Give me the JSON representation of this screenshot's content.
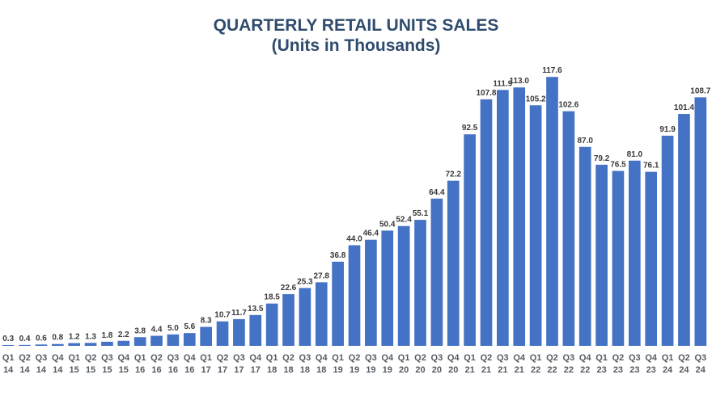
{
  "chart_data": {
    "type": "bar",
    "title": "QUARTERLY RETAIL UNITS SALES",
    "subtitle": "(Units in Thousands)",
    "xlabel": "",
    "ylabel": "",
    "ylim": [
      0,
      125
    ],
    "grid": false,
    "bar_color": "#4472c4",
    "categories": [
      [
        "Q1",
        "14"
      ],
      [
        "Q2",
        "14"
      ],
      [
        "Q3",
        "14"
      ],
      [
        "Q4",
        "14"
      ],
      [
        "Q1",
        "15"
      ],
      [
        "Q2",
        "15"
      ],
      [
        "Q3",
        "15"
      ],
      [
        "Q4",
        "15"
      ],
      [
        "Q1",
        "16"
      ],
      [
        "Q2",
        "16"
      ],
      [
        "Q3",
        "16"
      ],
      [
        "Q4",
        "16"
      ],
      [
        "Q1",
        "17"
      ],
      [
        "Q2",
        "17"
      ],
      [
        "Q3",
        "17"
      ],
      [
        "Q4",
        "17"
      ],
      [
        "Q1",
        "18"
      ],
      [
        "Q2",
        "18"
      ],
      [
        "Q3",
        "18"
      ],
      [
        "Q4",
        "18"
      ],
      [
        "Q1",
        "19"
      ],
      [
        "Q2",
        "19"
      ],
      [
        "Q3",
        "19"
      ],
      [
        "Q4",
        "19"
      ],
      [
        "Q1",
        "20"
      ],
      [
        "Q2",
        "20"
      ],
      [
        "Q3",
        "20"
      ],
      [
        "Q4",
        "20"
      ],
      [
        "Q1",
        "21"
      ],
      [
        "Q2",
        "21"
      ],
      [
        "Q3",
        "21"
      ],
      [
        "Q4",
        "21"
      ],
      [
        "Q1",
        "22"
      ],
      [
        "Q2",
        "22"
      ],
      [
        "Q3",
        "22"
      ],
      [
        "Q4",
        "22"
      ],
      [
        "Q1",
        "23"
      ],
      [
        "Q2",
        "23"
      ],
      [
        "Q3",
        "23"
      ],
      [
        "Q4",
        "23"
      ],
      [
        "Q1",
        "24"
      ],
      [
        "Q2",
        "24"
      ],
      [
        "Q3",
        "24"
      ]
    ],
    "values": [
      0.3,
      0.4,
      0.6,
      0.8,
      1.2,
      1.3,
      1.8,
      2.2,
      3.8,
      4.4,
      5.0,
      5.6,
      8.3,
      10.7,
      11.7,
      13.5,
      18.5,
      22.6,
      25.3,
      27.8,
      36.8,
      44.0,
      46.4,
      50.4,
      52.4,
      55.1,
      64.4,
      72.2,
      92.5,
      107.8,
      111.9,
      113.0,
      105.2,
      117.6,
      102.6,
      87.0,
      79.2,
      76.5,
      81.0,
      76.1,
      91.9,
      101.4,
      108.7
    ]
  }
}
